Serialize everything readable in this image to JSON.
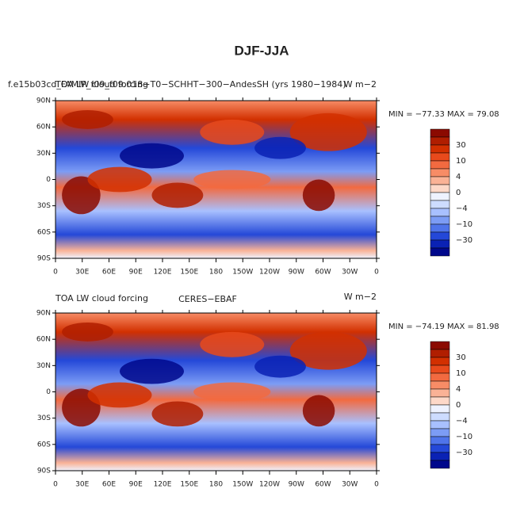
{
  "title": "DJF-JJA",
  "lat_labels": [
    "90N",
    "60N",
    "30N",
    "0",
    "30S",
    "60S",
    "90S"
  ],
  "lon_labels": [
    "0",
    "30E",
    "60E",
    "90E",
    "120E",
    "150E",
    "180",
    "150W",
    "120W",
    "90W",
    "60W",
    "30W",
    "0"
  ],
  "colorbar": {
    "labels": [
      "30",
      "10",
      "4",
      "0",
      "−4",
      "−10",
      "−30"
    ],
    "colors": [
      "#8b0a00",
      "#b01e00",
      "#d23000",
      "#e84a1c",
      "#f26a40",
      "#f78c66",
      "#fab296",
      "#fdd8c8",
      "#eef2ff",
      "#cddcff",
      "#a8c0ff",
      "#7c9cf5",
      "#4f74ea",
      "#2448d8",
      "#0a22b4",
      "#00088c"
    ]
  },
  "panels": [
    {
      "case_title": "f.e15b03cd_FAMIP_f09_f09.018−T0−SCHHT−300−AndesSH (yrs 1980−1984)",
      "left_title": "TOA LW cloud forcing",
      "right_title": "W m−2",
      "min_max": "MIN = −77.33 MAX =  79.08"
    },
    {
      "left_title": "TOA LW cloud forcing",
      "center_title": "CERES−EBAF",
      "right_title": "W m−2",
      "min_max": "MIN = −74.19 MAX =  81.98"
    }
  ]
}
